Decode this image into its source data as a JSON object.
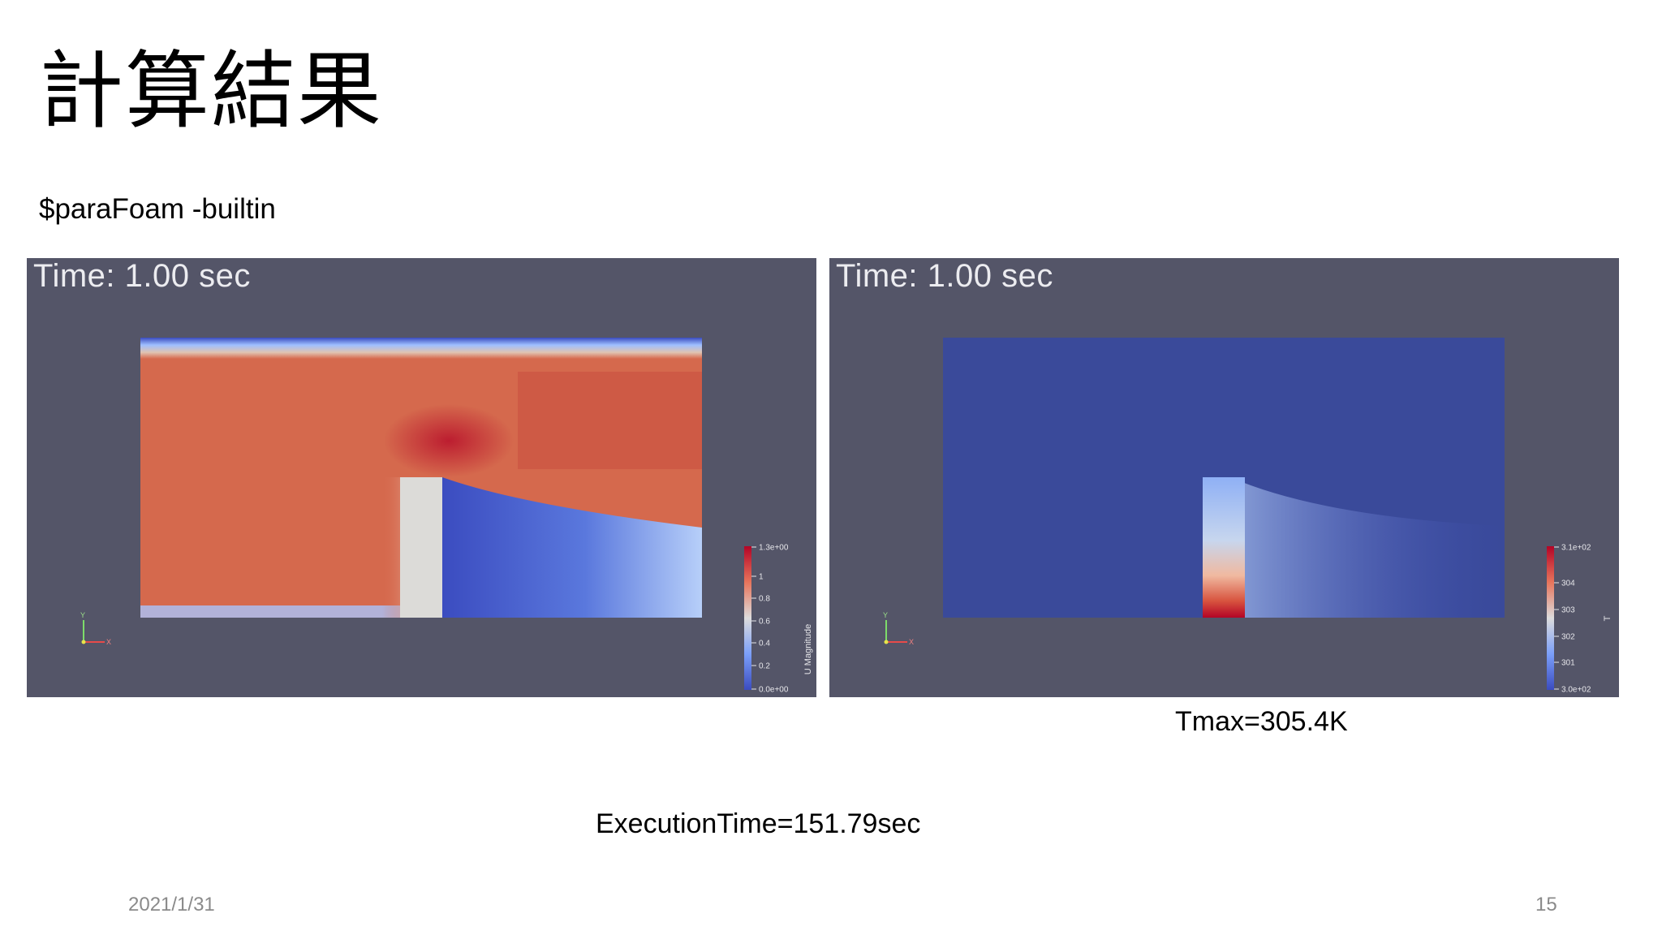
{
  "slide": {
    "title": "計算結果",
    "command": "$paraFoam -builtin",
    "tmax": "Tmax=305.4K",
    "execution_time": "ExecutionTime=151.79sec",
    "date": "2021/1/31",
    "page_number": "15"
  },
  "panels": {
    "velocity": {
      "time_label": "Time: 1.00 sec",
      "colorbar_title": "U Magnitude",
      "colorbar_ticks": [
        "1.3e+00",
        "1",
        "0.8",
        "0.6",
        "0.4",
        "0.2",
        "0.0e+00"
      ],
      "axes": {
        "y": "Y",
        "x": "X"
      }
    },
    "temperature": {
      "time_label": "Time: 1.00 sec",
      "colorbar_title": "T",
      "colorbar_ticks": [
        "3.1e+02",
        "304",
        "303",
        "302",
        "301",
        "3.0e+02"
      ],
      "axes": {
        "y": "Y",
        "x": "X"
      }
    }
  },
  "colors": {
    "background": "#545568",
    "hot": "#b40426",
    "cold": "#3b4cc0",
    "neutral": "#dddcdc"
  }
}
